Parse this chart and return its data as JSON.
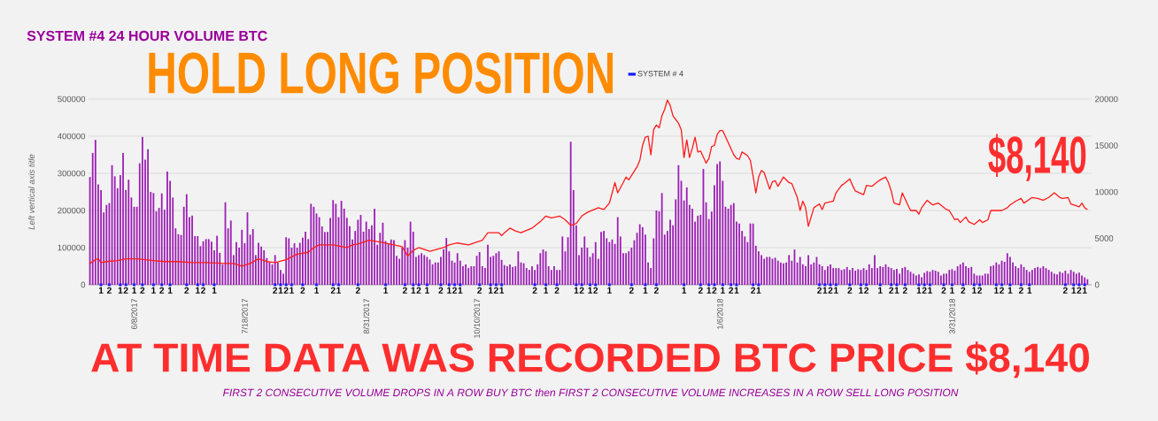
{
  "chart_data": {
    "type": "bar",
    "title": "SYSTEM #4 24 HOUR VOLUME BTC",
    "ylabel": "Left vertical axis title",
    "annotations": [
      "HOLD LONG POSITION",
      "$8,140",
      "AT TIME DATA WAS RECORDED BTC PRICE $8,140",
      "FIRST 2 CONSECUTIVE VOLUME DROPS IN A ROW BUY BTC then FIRST 2 CONSECUTIVE VOLUME INCREASES IN A ROW SELL LONG POSITION"
    ],
    "x": [
      "2017-05-23",
      "2017-05-24",
      "2017-05-25",
      "2017-05-26",
      "2017-05-27",
      "2017-05-28",
      "2017-05-29",
      "2017-05-30",
      "2017-05-31",
      "2017-06-01",
      "2017-06-02",
      "2017-06-03",
      "2017-06-04",
      "2017-06-05",
      "2017-06-06",
      "2017-06-07",
      "2017-06-08",
      "2017-06-09",
      "2017-06-10",
      "2017-06-11",
      "2017-06-12",
      "2017-06-13",
      "2017-06-14",
      "2017-06-15",
      "2017-06-16",
      "2017-06-17",
      "2017-06-18",
      "2017-06-19",
      "2017-06-20",
      "2017-06-21",
      "2017-06-22",
      "2017-06-23",
      "2017-06-24",
      "2017-06-25",
      "2017-06-26",
      "2017-06-27",
      "2017-06-28",
      "2017-06-29",
      "2017-06-30",
      "2017-07-01",
      "2017-07-02",
      "2017-07-03",
      "2017-07-04",
      "2017-07-05",
      "2017-07-06",
      "2017-07-07",
      "2017-07-08",
      "2017-07-09",
      "2017-07-10",
      "2017-07-11",
      "2017-07-12",
      "2017-07-13",
      "2017-07-14",
      "2017-07-15",
      "2017-07-16",
      "2017-07-17",
      "2017-07-18",
      "2017-07-19",
      "2017-07-20",
      "2017-07-21",
      "2017-07-22",
      "2017-07-23",
      "2017-07-24",
      "2017-07-25",
      "2017-07-26",
      "2017-07-27",
      "2017-07-28",
      "2017-07-29",
      "2017-07-30",
      "2017-07-31",
      "2017-08-01",
      "2017-08-02",
      "2017-08-03",
      "2017-08-04",
      "2017-08-05",
      "2017-08-06",
      "2017-08-07",
      "2017-08-08",
      "2017-08-09",
      "2017-08-10",
      "2017-08-11",
      "2017-08-12",
      "2017-08-13",
      "2017-08-14",
      "2017-08-15",
      "2017-08-16",
      "2017-08-17",
      "2017-08-18",
      "2017-08-19",
      "2017-08-20",
      "2017-08-21",
      "2017-08-22",
      "2017-08-23",
      "2017-08-24",
      "2017-08-25",
      "2017-08-26",
      "2017-08-27",
      "2017-08-28",
      "2017-08-29",
      "2017-08-30",
      "2017-08-31",
      "2017-09-01",
      "2017-09-02",
      "2017-09-03",
      "2017-09-04",
      "2017-09-05",
      "2017-09-06",
      "2017-09-07",
      "2017-09-08",
      "2017-09-09",
      "2017-09-10",
      "2017-09-11",
      "2017-09-12",
      "2017-09-13",
      "2017-09-14",
      "2017-09-15",
      "2017-09-16",
      "2017-09-17",
      "2017-09-18",
      "2017-09-19",
      "2017-09-20",
      "2017-09-21",
      "2017-09-22",
      "2017-09-23",
      "2017-09-24",
      "2017-09-25",
      "2017-09-26",
      "2017-09-27",
      "2017-09-28",
      "2017-09-29",
      "2017-09-30",
      "2017-10-01",
      "2017-10-02",
      "2017-10-03",
      "2017-10-04",
      "2017-10-05",
      "2017-10-06",
      "2017-10-07",
      "2017-10-08",
      "2017-10-09",
      "2017-10-10",
      "2017-10-11",
      "2017-10-12",
      "2017-10-13",
      "2017-10-14",
      "2017-10-15",
      "2017-10-16",
      "2017-10-17",
      "2017-10-18",
      "2017-10-19",
      "2017-10-20",
      "2017-10-21",
      "2017-10-22",
      "2017-10-23",
      "2017-10-24",
      "2017-10-25",
      "2017-10-26",
      "2017-10-27",
      "2017-10-28",
      "2017-10-29",
      "2017-10-30",
      "2017-10-31",
      "2017-11-01",
      "2017-11-02",
      "2017-11-03",
      "2017-11-04",
      "2017-11-05",
      "2017-11-06",
      "2017-11-07",
      "2017-11-08",
      "2017-11-09",
      "2017-11-10",
      "2017-11-11",
      "2017-11-12",
      "2017-11-13",
      "2017-11-14",
      "2017-11-15",
      "2017-11-16",
      "2017-11-17",
      "2017-11-18",
      "2017-11-19",
      "2017-11-20",
      "2017-11-21",
      "2017-11-22",
      "2017-11-23",
      "2017-11-24",
      "2017-11-25",
      "2017-11-26",
      "2017-11-27",
      "2017-11-28",
      "2017-11-29",
      "2017-11-30",
      "2017-12-01",
      "2017-12-02",
      "2017-12-03",
      "2017-12-04",
      "2017-12-05",
      "2017-12-06",
      "2017-12-07",
      "2017-12-08",
      "2017-12-09",
      "2017-12-10",
      "2017-12-11",
      "2017-12-12",
      "2017-12-13",
      "2017-12-14",
      "2017-12-15",
      "2017-12-16",
      "2017-12-17",
      "2017-12-18",
      "2017-12-19",
      "2017-12-20",
      "2017-12-21",
      "2017-12-22",
      "2017-12-23",
      "2017-12-24",
      "2017-12-25",
      "2017-12-26",
      "2017-12-27",
      "2017-12-28",
      "2017-12-29",
      "2017-12-30",
      "2017-12-31",
      "2018-01-01",
      "2018-01-02",
      "2018-01-03",
      "2018-01-04",
      "2018-01-05",
      "2018-01-06",
      "2018-01-07",
      "2018-01-08",
      "2018-01-09",
      "2018-01-10",
      "2018-01-11",
      "2018-01-12",
      "2018-01-13",
      "2018-01-14",
      "2018-01-15",
      "2018-01-16",
      "2018-01-17",
      "2018-01-18",
      "2018-01-19",
      "2018-01-20",
      "2018-01-21",
      "2018-01-22",
      "2018-01-23",
      "2018-01-24",
      "2018-01-25",
      "2018-01-26",
      "2018-01-27",
      "2018-01-28",
      "2018-01-29",
      "2018-01-30",
      "2018-01-31",
      "2018-02-01",
      "2018-02-02",
      "2018-02-03",
      "2018-02-04",
      "2018-02-05",
      "2018-02-06",
      "2018-02-07",
      "2018-02-08",
      "2018-02-09",
      "2018-02-10",
      "2018-02-11",
      "2018-02-12",
      "2018-02-13",
      "2018-02-14",
      "2018-02-15",
      "2018-02-16",
      "2018-02-17",
      "2018-02-18",
      "2018-02-19",
      "2018-02-20",
      "2018-02-21",
      "2018-02-22",
      "2018-02-23",
      "2018-02-24",
      "2018-02-25",
      "2018-02-26",
      "2018-02-27",
      "2018-02-28",
      "2018-03-01",
      "2018-03-02",
      "2018-03-03",
      "2018-03-04",
      "2018-03-05",
      "2018-03-06",
      "2018-03-07",
      "2018-03-08",
      "2018-03-09",
      "2018-03-10",
      "2018-03-11",
      "2018-03-12",
      "2018-03-13",
      "2018-03-14",
      "2018-03-15",
      "2018-03-16",
      "2018-03-17",
      "2018-03-18",
      "2018-03-19",
      "2018-03-20",
      "2018-03-21",
      "2018-03-22",
      "2018-03-23",
      "2018-03-24",
      "2018-03-25",
      "2018-03-26",
      "2018-03-27",
      "2018-03-28",
      "2018-03-29",
      "2018-03-30",
      "2018-03-31",
      "2018-04-01",
      "2018-04-02",
      "2018-04-03",
      "2018-04-04",
      "2018-04-05",
      "2018-04-06",
      "2018-04-07",
      "2018-04-08",
      "2018-04-09",
      "2018-04-10",
      "2018-04-11",
      "2018-04-12",
      "2018-04-13",
      "2018-04-14",
      "2018-04-15",
      "2018-04-16",
      "2018-04-17",
      "2018-04-18",
      "2018-04-19",
      "2018-04-20",
      "2018-04-21",
      "2018-04-22",
      "2018-04-23",
      "2018-04-24",
      "2018-04-25",
      "2018-04-26",
      "2018-04-27",
      "2018-04-28",
      "2018-04-29",
      "2018-04-30",
      "2018-05-01",
      "2018-05-02",
      "2018-05-03",
      "2018-05-04",
      "2018-05-05",
      "2018-05-06",
      "2018-05-07",
      "2018-05-08",
      "2018-05-09",
      "2018-05-10",
      "2018-05-11",
      "2018-05-12",
      "2018-05-13",
      "2018-05-14",
      "2018-05-15",
      "2018-05-16",
      "2018-05-17",
      "2018-05-18",
      "2018-05-19"
    ],
    "series": [
      {
        "color": "#9b1fb3",
        "values": [
          290000,
          355000,
          390000,
          270000,
          255000,
          195000,
          215000,
          220000,
          322000,
          292000,
          260000,
          295000,
          355000,
          255000,
          283000,
          235000,
          210000,
          210000,
          327000,
          398000,
          337000,
          365000,
          250000,
          247000,
          198000,
          207000,
          246000,
          202000,
          305000,
          280000,
          235000,
          152000,
          136000,
          134000,
          210000,
          244000,
          182000,
          186000,
          131000,
          131000,
          104000,
          117000,
          123000,
          123000,
          116000,
          93000,
          132000,
          86000,
          55000,
          222000,
          152000,
          173000,
          80000,
          115000,
          100000,
          148000,
          112000,
          195000,
          135000,
          150000,
          80000,
          113000,
          103000,
          93000,
          72000,
          60000,
          55000,
          80000,
          60000,
          40000,
          30000,
          128000,
          125000,
          100000,
          112000,
          100000,
          113000,
          127000,
          143000,
          123000,
          218000,
          210000,
          192000,
          182000,
          157000,
          142000,
          142000,
          180000,
          228000,
          218000,
          182000,
          226000,
          205000,
          180000,
          158000,
          122000,
          145000,
          175000,
          188000,
          143000,
          170000,
          150000,
          160000,
          205000,
          108000,
          140000,
          167000,
          118000,
          112000,
          122000,
          120000,
          78000,
          70000,
          100000,
          120000,
          100000,
          170000,
          143000,
          75000,
          80000,
          85000,
          80000,
          75000,
          68000,
          55000,
          60000,
          60000,
          75000,
          95000,
          126000,
          90000,
          65000,
          60000,
          85000,
          65000,
          50000,
          55000,
          45000,
          50000,
          50000,
          78000,
          88000,
          50000,
          45000,
          108000,
          75000,
          78000,
          85000,
          90000,
          67000,
          53000,
          50000,
          55000,
          48000,
          50000,
          90000,
          60000,
          58000,
          45000,
          40000,
          50000,
          40000,
          55000,
          85000,
          95000,
          90000,
          50000,
          40000,
          50000,
          40000,
          40000,
          130000,
          90000,
          128000,
          385000,
          255000,
          160000,
          80000,
          100000,
          130000,
          100000,
          75000,
          85000,
          115000,
          70000,
          142000,
          145000,
          125000,
          115000,
          122000,
          110000,
          182000,
          130000,
          85000,
          85000,
          90000,
          100000,
          120000,
          140000,
          163000,
          155000,
          135000,
          60000,
          45000,
          125000,
          200000,
          198000,
          247000,
          135000,
          145000,
          175000,
          160000,
          230000,
          322000,
          280000,
          227000,
          262000,
          215000,
          205000,
          170000,
          186000,
          188000,
          312000,
          222000,
          177000,
          197000,
          268000,
          325000,
          332000,
          280000,
          210000,
          205000,
          215000,
          220000,
          170000,
          165000,
          145000,
          130000,
          115000,
          165000,
          165000,
          105000,
          90000,
          80000,
          70000,
          75000,
          75000,
          70000,
          73000,
          65000,
          60000,
          58000,
          60000,
          80000,
          65000,
          95000,
          60000,
          75000,
          55000,
          50000,
          80000,
          55000,
          60000,
          75000,
          55000,
          50000,
          40000,
          50000,
          55000,
          45000,
          45000,
          45000,
          40000,
          42000,
          48000,
          40000,
          45000,
          38000,
          42000,
          40000,
          45000,
          40000,
          55000,
          45000,
          80000,
          45000,
          50000,
          48000,
          55000,
          48000,
          45000,
          40000,
          43000,
          30000,
          45000,
          48000,
          40000,
          35000,
          30000,
          25000,
          28000,
          20000,
          32000,
          37000,
          35000,
          40000,
          38000,
          35000,
          25000,
          30000,
          30000,
          40000,
          42000,
          38000,
          50000,
          55000,
          60000,
          50000,
          45000,
          48000,
          30000,
          25000,
          25000,
          25000,
          30000,
          30000,
          50000,
          52000,
          60000,
          55000,
          65000,
          62000,
          85000,
          75000,
          60000,
          50000,
          45000,
          55000,
          48000,
          40000,
          35000,
          40000,
          45000,
          48000,
          45000,
          50000,
          45000,
          40000,
          35000,
          30000,
          28000,
          35000,
          32000,
          38000,
          30000,
          40000,
          35000,
          30000,
          33000,
          25000,
          20000,
          15000
        ]
      },
      {
        "name": "SYSTEM # 4",
        "type": "scatter",
        "marker": "square",
        "color": "#1a1aff",
        "x": [
          "2017-05-27",
          "2017-05-30",
          "2017-06-03",
          "2017-06-05",
          "2017-06-08",
          "2017-06-11",
          "2017-06-15",
          "2017-06-18",
          "2017-06-21",
          "2017-06-27",
          "2017-07-01",
          "2017-07-03",
          "2017-07-07",
          "2017-07-29",
          "2017-07-31",
          "2017-08-02",
          "2017-08-04",
          "2017-08-08",
          "2017-08-13",
          "2017-08-19",
          "2017-08-21",
          "2017-08-28",
          "2017-09-07",
          "2017-09-14",
          "2017-09-17",
          "2017-09-19",
          "2017-09-22",
          "2017-09-27",
          "2017-09-30",
          "2017-10-02",
          "2017-10-04",
          "2017-10-11",
          "2017-10-15",
          "2017-10-17",
          "2017-10-19",
          "2017-10-31",
          "2017-11-04",
          "2017-11-08",
          "2017-11-15",
          "2017-11-17",
          "2017-11-20",
          "2017-11-22",
          "2017-11-27",
          "2017-12-05",
          "2017-12-10",
          "2017-12-14",
          "2017-12-24",
          "2017-12-30",
          "2018-01-02",
          "2018-01-04",
          "2018-01-07",
          "2018-01-10",
          "2018-01-12",
          "2018-01-18",
          "2018-01-20",
          "2018-02-11",
          "2018-02-13",
          "2018-02-15",
          "2018-02-17",
          "2018-02-22",
          "2018-02-26",
          "2018-02-28",
          "2018-03-05",
          "2018-03-09",
          "2018-03-11",
          "2018-03-14",
          "2018-03-19",
          "2018-03-21",
          "2018-03-23",
          "2018-03-28",
          "2018-03-31",
          "2018-04-04",
          "2018-04-08",
          "2018-04-10",
          "2018-04-16",
          "2018-04-18",
          "2018-04-21",
          "2018-04-25",
          "2018-04-28",
          "2018-05-11",
          "2018-05-14",
          "2018-05-16",
          "2018-05-18"
        ],
        "values": [
          1,
          2,
          1,
          2,
          1,
          2,
          1,
          2,
          1,
          2,
          1,
          2,
          1,
          2,
          1,
          2,
          1,
          2,
          1,
          2,
          1,
          2,
          1,
          2,
          1,
          2,
          1,
          2,
          1,
          2,
          1,
          2,
          1,
          2,
          1,
          2,
          1,
          2,
          1,
          2,
          1,
          2,
          1,
          2,
          1,
          2,
          1,
          2,
          1,
          2,
          1,
          2,
          1,
          2,
          1,
          2,
          1,
          2,
          1,
          2,
          1,
          2,
          1,
          2,
          1,
          2,
          1,
          2,
          1,
          2,
          1,
          2,
          1,
          2,
          1,
          2,
          1,
          2,
          1,
          2,
          1,
          2,
          1
        ],
        "value_labels": [
          "1",
          "2",
          "1",
          "2",
          "1",
          "2",
          "1",
          "2",
          "1",
          "2",
          "1",
          "2",
          "1",
          "2",
          "1",
          "2",
          "1",
          "2",
          "1",
          "2",
          "1",
          "2",
          "1",
          "2",
          "1",
          "2",
          "1",
          "2",
          "1",
          "2",
          "1",
          "2",
          "1",
          "2",
          "1",
          "2",
          "1",
          "2",
          "1",
          "2",
          "1",
          "2",
          "1",
          "2",
          "1",
          "2",
          "1",
          "2",
          "1",
          "2",
          "1",
          "2",
          "1",
          "2",
          "1",
          "2",
          "1",
          "2",
          "1",
          "2",
          "1",
          "2",
          "1",
          "2",
          "1",
          "2",
          "1",
          "2",
          "1",
          "2",
          "1",
          "2",
          "1",
          "2",
          "1",
          "2",
          "1",
          "2",
          "1",
          "2",
          "1",
          "2",
          "1"
        ]
      },
      {
        "type": "line",
        "axis": "y2",
        "color": "#ff1a1a",
        "x": [
          "2017-05-23",
          "2017-05-25",
          "2017-05-26",
          "2017-05-27",
          "2017-05-29",
          "2017-06-02",
          "2017-06-05",
          "2017-06-09",
          "2017-06-15",
          "2017-06-19",
          "2017-06-24",
          "2017-06-29",
          "2017-07-04",
          "2017-07-11",
          "2017-07-14",
          "2017-07-17",
          "2017-07-20",
          "2017-07-23",
          "2017-07-26",
          "2017-07-29",
          "2017-08-02",
          "2017-08-06",
          "2017-08-10",
          "2017-08-12",
          "2017-08-14",
          "2017-08-19",
          "2017-08-24",
          "2017-08-26",
          "2017-08-28",
          "2017-09-01",
          "2017-09-05",
          "2017-09-10",
          "2017-09-13",
          "2017-09-15",
          "2017-09-17",
          "2017-09-19",
          "2017-09-23",
          "2017-09-28",
          "2017-09-30",
          "2017-10-03",
          "2017-10-07",
          "2017-10-12",
          "2017-10-14",
          "2017-10-18",
          "2017-10-19",
          "2017-10-20",
          "2017-10-22",
          "2017-10-24",
          "2017-10-26",
          "2017-10-30",
          "2017-11-02",
          "2017-11-04",
          "2017-11-06",
          "2017-11-09",
          "2017-11-11",
          "2017-11-13",
          "2017-11-15",
          "2017-11-17",
          "2017-11-19",
          "2017-11-23",
          "2017-11-25",
          "2017-11-27",
          "2017-11-28",
          "2017-11-29",
          "2017-11-30",
          "2017-12-02",
          "2017-12-03",
          "2017-12-04",
          "2017-12-07",
          "2017-12-08",
          "2017-12-09",
          "2017-12-10",
          "2017-12-11",
          "2017-12-12",
          "2017-12-13",
          "2017-12-14",
          "2017-12-15",
          "2017-12-16",
          "2017-12-17",
          "2017-12-18",
          "2017-12-19",
          "2017-12-20",
          "2017-12-22",
          "2017-12-23",
          "2017-12-24",
          "2017-12-25",
          "2017-12-26",
          "2017-12-27",
          "2017-12-28",
          "2017-12-29",
          "2017-12-30",
          "2018-01-01",
          "2018-01-02",
          "2018-01-03",
          "2018-01-04",
          "2018-01-05",
          "2018-01-06",
          "2018-01-07",
          "2018-01-09",
          "2018-01-11",
          "2018-01-12",
          "2018-01-13",
          "2018-01-14",
          "2018-01-16",
          "2018-01-17",
          "2018-01-18",
          "2018-01-19",
          "2018-01-20",
          "2018-01-21",
          "2018-01-22",
          "2018-01-24",
          "2018-01-25",
          "2018-01-26",
          "2018-01-27",
          "2018-01-29",
          "2018-01-31",
          "2018-02-01",
          "2018-02-03",
          "2018-02-04",
          "2018-02-05",
          "2018-02-06",
          "2018-02-07",
          "2018-02-09",
          "2018-02-10",
          "2018-02-11",
          "2018-02-12",
          "2018-02-13",
          "2018-02-16",
          "2018-02-17",
          "2018-02-19",
          "2018-02-20",
          "2018-02-22",
          "2018-02-23",
          "2018-02-24",
          "2018-02-27",
          "2018-02-28",
          "2018-03-02",
          "2018-03-04",
          "2018-03-05",
          "2018-03-07",
          "2018-03-08",
          "2018-03-09",
          "2018-03-10",
          "2018-03-12",
          "2018-03-13",
          "2018-03-15",
          "2018-03-16",
          "2018-03-18",
          "2018-03-19",
          "2018-03-20",
          "2018-03-22",
          "2018-03-24",
          "2018-03-26",
          "2018-03-29",
          "2018-03-30",
          "2018-04-01",
          "2018-04-02",
          "2018-04-03",
          "2018-04-05",
          "2018-04-06",
          "2018-04-08",
          "2018-04-10",
          "2018-04-11",
          "2018-04-13",
          "2018-04-14",
          "2018-04-16",
          "2018-04-18",
          "2018-04-20",
          "2018-04-21",
          "2018-04-23",
          "2018-04-25",
          "2018-04-26",
          "2018-04-29",
          "2018-05-01",
          "2018-05-03",
          "2018-05-05",
          "2018-05-07",
          "2018-05-09",
          "2018-05-10",
          "2018-05-12",
          "2018-05-13",
          "2018-05-14",
          "2018-05-16",
          "2018-05-17",
          "2018-05-18",
          "2018-05-19"
        ],
        "values": [
          2300,
          2700,
          2800,
          2400,
          2500,
          2600,
          2800,
          2800,
          2600,
          2500,
          2500,
          2400,
          2400,
          2300,
          2300,
          2000,
          2300,
          2800,
          2500,
          2400,
          2700,
          3300,
          3500,
          4000,
          4300,
          4300,
          4000,
          4300,
          4400,
          4800,
          4600,
          4300,
          4100,
          3100,
          3700,
          4000,
          3600,
          4000,
          4300,
          4500,
          4300,
          4800,
          5600,
          5600,
          5300,
          5600,
          6100,
          5800,
          5600,
          6100,
          6800,
          7400,
          7200,
          7400,
          7000,
          6400,
          6600,
          7400,
          7800,
          8300,
          8100,
          8800,
          9900,
          11000,
          9900,
          11000,
          11600,
          11300,
          12700,
          13400,
          15000,
          15900,
          16000,
          14000,
          16700,
          17200,
          16900,
          18200,
          18900,
          19900,
          19300,
          18200,
          17400,
          16700,
          13700,
          15600,
          13700,
          14700,
          15900,
          14300,
          14400,
          13100,
          13600,
          14900,
          15000,
          16200,
          16600,
          16600,
          15300,
          14000,
          13600,
          13500,
          14300,
          13900,
          13400,
          11700,
          9900,
          11600,
          12300,
          12100,
          10300,
          11100,
          11200,
          10600,
          11600,
          11000,
          10900,
          9400,
          8000,
          9000,
          8300,
          6300,
          8300,
          8500,
          8700,
          8100,
          8800,
          9000,
          9900,
          10700,
          10900,
          11400,
          10700,
          10100,
          9700,
          10700,
          10600,
          11100,
          11300,
          11600,
          11000,
          10100,
          8800,
          8600,
          9900,
          8600,
          8000,
          8000,
          7600,
          8300,
          9100,
          8600,
          8800,
          8100,
          8000,
          7000,
          7100,
          6700,
          7300,
          6800,
          6500,
          7000,
          6700,
          7000,
          8000,
          8000,
          8000,
          8300,
          8600,
          9000,
          9300,
          8800,
          9400,
          9300,
          9100,
          9400,
          9900,
          9400,
          9300,
          9400,
          8700,
          8600,
          8400,
          8800,
          8300,
          8100
        ]
      }
    ],
    "xlim": [
      "2017-05-22T12:00",
      "2018-05-20T12:00"
    ],
    "xticks": [
      {
        "value": "2017-06-08",
        "label": "6/8/2017"
      },
      {
        "value": "2017-07-18",
        "label": "7/18/2017"
      },
      {
        "value": "2017-08-31",
        "label": "8/31/2017"
      },
      {
        "value": "2017-10-10",
        "label": "10/10/2017"
      },
      {
        "value": "2018-01-06",
        "label": "1/6/2018"
      },
      {
        "value": "2018-03-31",
        "label": "3/31/2018"
      }
    ],
    "ylim": [
      0,
      500000
    ],
    "yticks": [
      0,
      100000,
      200000,
      300000,
      400000,
      500000
    ],
    "y2lim": [
      0,
      20000
    ],
    "y2ticks": [
      0,
      5000,
      10000,
      15000,
      20000
    ],
    "grid": "y",
    "legend": "top"
  }
}
